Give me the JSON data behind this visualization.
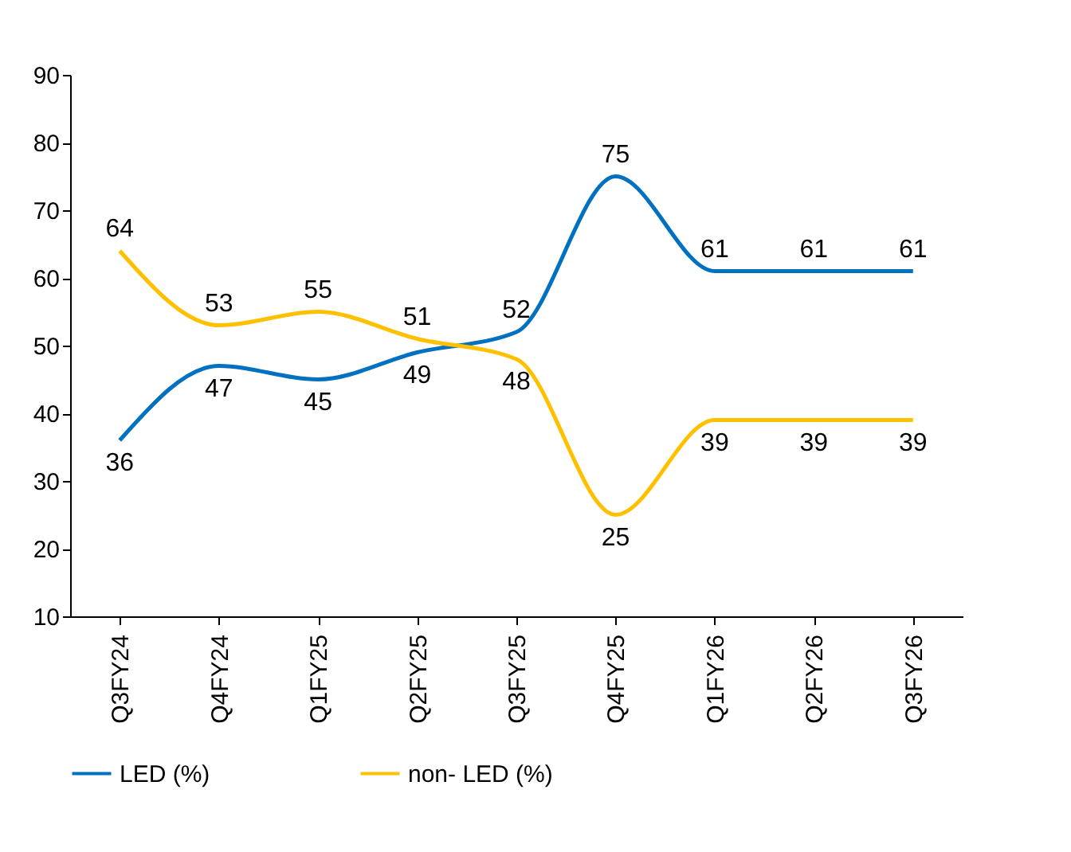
{
  "chart_data": {
    "type": "line",
    "categories": [
      "Q3FY24",
      "Q4FY24",
      "Q1FY25",
      "Q2FY25",
      "Q3FY25",
      "Q4FY25",
      "Q1FY26",
      "Q2FY26",
      "Q3FY26"
    ],
    "series": [
      {
        "name": "LED (%)",
        "color": "#0070c0",
        "values": [
          36,
          47,
          45,
          49,
          52,
          75,
          61,
          61,
          61
        ]
      },
      {
        "name": "non- LED (%)",
        "color": "#ffc000",
        "values": [
          64,
          53,
          55,
          51,
          48,
          25,
          39,
          39,
          39
        ]
      }
    ],
    "ylim": [
      10,
      90
    ],
    "yticks": [
      10,
      20,
      30,
      40,
      50,
      60,
      70,
      80,
      90
    ],
    "grid": false,
    "legend": "bottom",
    "data_labels": true,
    "marker": "none",
    "line_style": "solid"
  }
}
